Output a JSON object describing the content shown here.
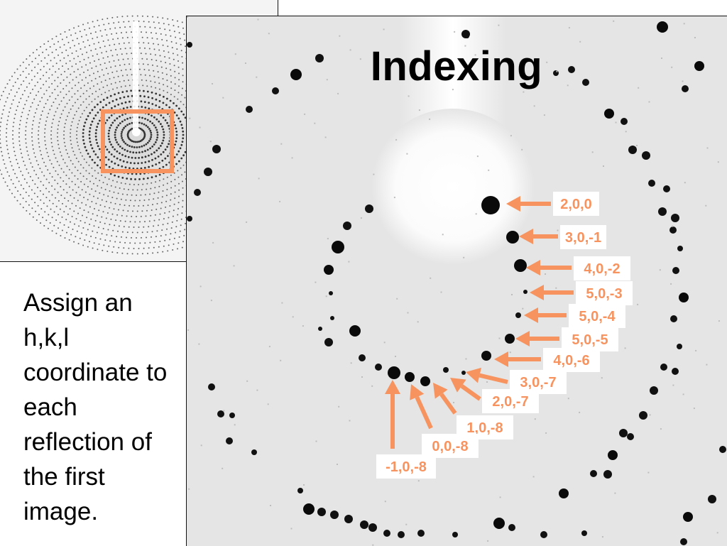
{
  "slide": {
    "title": "Indexing",
    "caption": "Assign an h,k,l coordinate to each reflection of the first image."
  },
  "colors": {
    "accent": "#f7935f",
    "label_bg": "#ffffff",
    "spot": "#111111",
    "detector_bg": "#e5e5e5"
  },
  "reflections": [
    "2,0,0",
    "3,0,-1",
    "4,0,-2",
    "5,0,-3",
    "5,0,-4",
    "5,0,-5",
    "4,0,-6",
    "3,0,-7",
    "2,0,-7",
    "1,0,-8",
    "0,0,-8",
    "-1,0,-8"
  ]
}
